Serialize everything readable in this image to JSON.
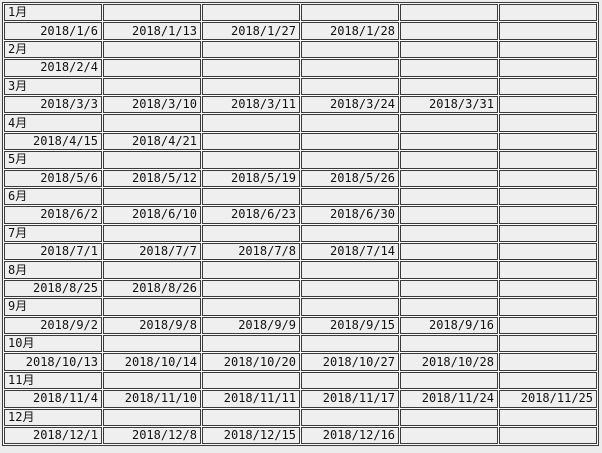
{
  "calendar": {
    "columns": 6,
    "months": [
      {
        "label": "1月",
        "dates": [
          "2018/1/6",
          "2018/1/13",
          "2018/1/27",
          "2018/1/28"
        ]
      },
      {
        "label": "2月",
        "dates": [
          "2018/2/4"
        ]
      },
      {
        "label": "3月",
        "dates": [
          "2018/3/3",
          "2018/3/10",
          "2018/3/11",
          "2018/3/24",
          "2018/3/31"
        ]
      },
      {
        "label": "4月",
        "dates": [
          "2018/4/15",
          "2018/4/21"
        ]
      },
      {
        "label": "5月",
        "dates": [
          "2018/5/6",
          "2018/5/12",
          "2018/5/19",
          "2018/5/26"
        ]
      },
      {
        "label": "6月",
        "dates": [
          "2018/6/2",
          "2018/6/10",
          "2018/6/23",
          "2018/6/30"
        ]
      },
      {
        "label": "7月",
        "dates": [
          "2018/7/1",
          "2018/7/7",
          "2018/7/8",
          "2018/7/14"
        ]
      },
      {
        "label": "8月",
        "dates": [
          "2018/8/25",
          "2018/8/26"
        ]
      },
      {
        "label": "9月",
        "dates": [
          "2018/9/2",
          "2018/9/8",
          "2018/9/9",
          "2018/9/15",
          "2018/9/16"
        ]
      },
      {
        "label": "10月",
        "dates": [
          "2018/10/13",
          "2018/10/14",
          "2018/10/20",
          "2018/10/27",
          "2018/10/28"
        ]
      },
      {
        "label": "11月",
        "dates": [
          "2018/11/4",
          "2018/11/10",
          "2018/11/11",
          "2018/11/17",
          "2018/11/24",
          "2018/11/25"
        ]
      },
      {
        "label": "12月",
        "dates": [
          "2018/12/1",
          "2018/12/8",
          "2018/12/15",
          "2018/12/16"
        ]
      }
    ]
  },
  "colors": {
    "page_bg": "#ececec",
    "cell_bg": "#efefef",
    "grid_border": "#3a3a3a",
    "grid_gap": "#fbfbfb",
    "text": "#111111"
  }
}
